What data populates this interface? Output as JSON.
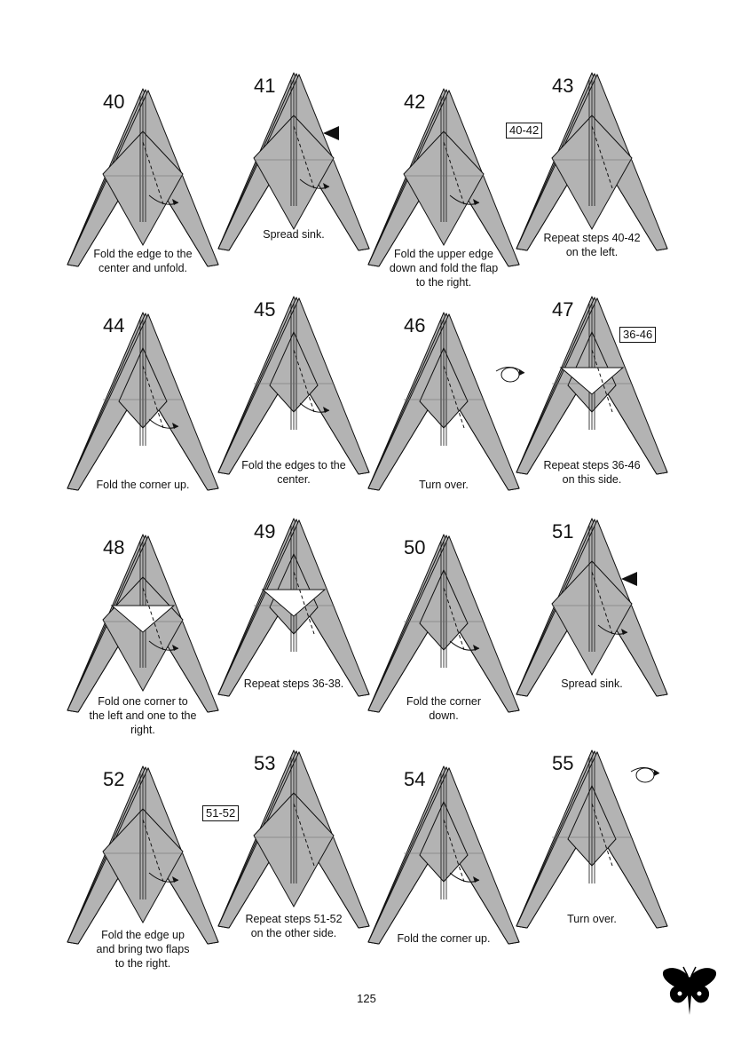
{
  "colors": {
    "paper": "#b3b3b3",
    "outline": "#111111",
    "white_paper": "#ffffff"
  },
  "steps": [
    {
      "number": "40",
      "caption": "Fold the edge to the\ncenter and unfold.",
      "kind": "fold"
    },
    {
      "number": "41",
      "caption": "Spread sink.",
      "kind": "sink"
    },
    {
      "number": "42",
      "caption": "Fold the upper edge\ndown and fold the flap\nto the right.",
      "kind": "fold"
    },
    {
      "number": "43",
      "caption": "Repeat steps 40-42\non the left.",
      "kind": "repeat",
      "ref": "40-42"
    },
    {
      "number": "44",
      "caption": "Fold the corner up.",
      "kind": "fold"
    },
    {
      "number": "45",
      "caption": "Fold the edges to the\ncenter.",
      "kind": "fold"
    },
    {
      "number": "46",
      "caption": "Turn over.",
      "kind": "turn"
    },
    {
      "number": "47",
      "caption": "Repeat steps 36-46\non this side.",
      "kind": "repeat",
      "ref": "36-46"
    },
    {
      "number": "48",
      "caption": "Fold one corner to\nthe left and one to the\nright.",
      "kind": "fold"
    },
    {
      "number": "49",
      "caption": "Repeat steps 36-38.",
      "kind": "repeat"
    },
    {
      "number": "50",
      "caption": "Fold the corner\ndown.",
      "kind": "fold"
    },
    {
      "number": "51",
      "caption": "Spread sink.",
      "kind": "sink"
    },
    {
      "number": "52",
      "caption": "Fold the edge up\nand bring two flaps\nto the right.",
      "kind": "fold"
    },
    {
      "number": "53",
      "caption": "Repeat steps 51-52\non the other side.",
      "kind": "repeat",
      "ref": "51-52"
    },
    {
      "number": "54",
      "caption": "Fold the corner up.",
      "kind": "fold"
    },
    {
      "number": "55",
      "caption": "Turn over.",
      "kind": "turn"
    }
  ],
  "page_number": "125",
  "icons": {
    "turn_over": "turn-over-icon",
    "sink": "push-arrow-icon",
    "logo": "butterfly-logo-icon"
  }
}
